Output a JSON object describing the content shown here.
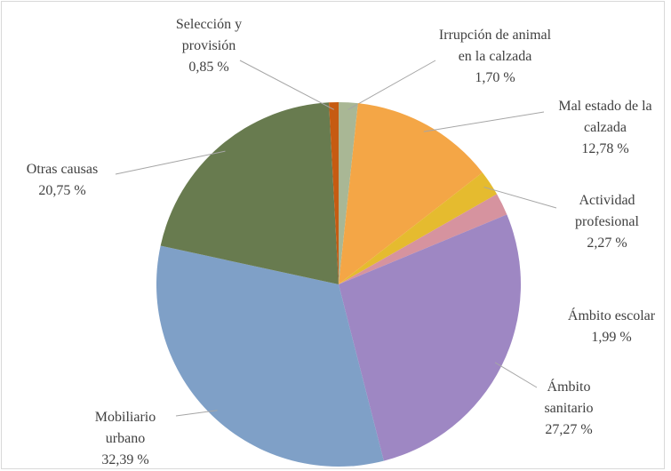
{
  "chart_data": {
    "type": "pie",
    "categories": [
      "Irrupción de animal en la calzada",
      "Mal estado de la calzada",
      "Actividad profesional",
      "Ámbito escolar",
      "Ámbito sanitario",
      "Mobiliario urbano",
      "Otras causas",
      "Selección y provisión"
    ],
    "values": [
      1.7,
      12.78,
      2.27,
      1.99,
      27.27,
      32.39,
      20.75,
      0.85
    ],
    "value_labels": [
      "1,70 %",
      "12,78 %",
      "2,27 %",
      "1,99 %",
      "27,27 %",
      "32,39 %",
      "20,75 %",
      "0,85 %"
    ],
    "colors": [
      "#a9b795",
      "#f4a646",
      "#e5bb2f",
      "#d6939f",
      "#9e87c3",
      "#7fa0c7",
      "#687b4f",
      "#c65b12"
    ]
  }
}
